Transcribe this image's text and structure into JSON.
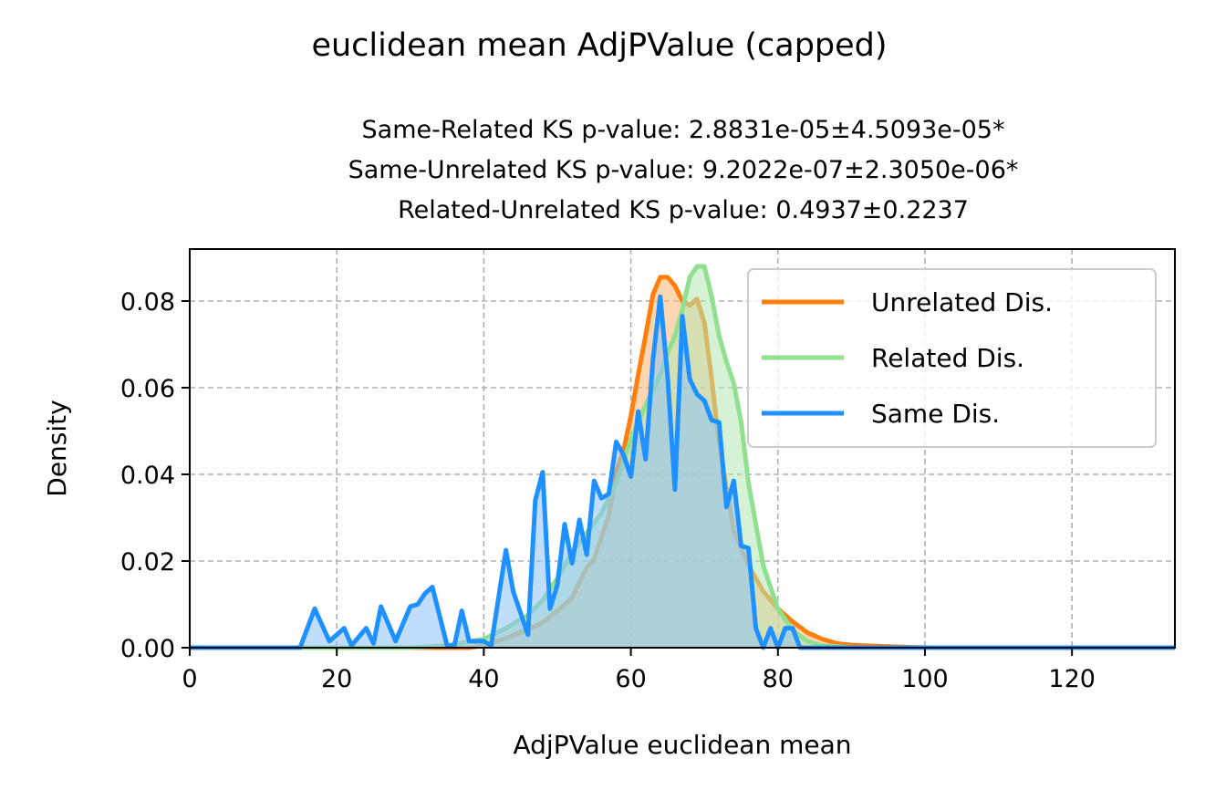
{
  "chart_data": {
    "type": "area",
    "title": "euclidean mean AdjPValue (capped)",
    "subtitle_lines": [
      "Same-Related KS p-value: 2.8831e-05±4.5093e-05*",
      "Same-Unrelated KS p-value: 9.2022e-07±2.3050e-06*",
      "Related-Unrelated KS p-value: 0.4937±0.2237"
    ],
    "xlabel": "AdjPValue euclidean mean",
    "ylabel": "Density",
    "xlim": [
      0,
      134
    ],
    "ylim": [
      0,
      0.092
    ],
    "xticks": [
      0,
      20,
      40,
      60,
      80,
      100,
      120
    ],
    "yticks": [
      0.0,
      0.02,
      0.04,
      0.06,
      0.08
    ],
    "ytick_labels": [
      "0.00",
      "0.02",
      "0.04",
      "0.06",
      "0.08"
    ],
    "grid": true,
    "legend_position": "top-right",
    "series": [
      {
        "name": "Unrelated Dis.",
        "color": "#ff7f0e",
        "fill": "#ffb472",
        "x": [
          0,
          15,
          38,
          40,
          43,
          46,
          48,
          50,
          52,
          54,
          55,
          56,
          57,
          58,
          59,
          60,
          61,
          62,
          63,
          64,
          65,
          66,
          67,
          68,
          69,
          70,
          71,
          72,
          74,
          76,
          78,
          80,
          82,
          84,
          86,
          88,
          90,
          93,
          96,
          100,
          134
        ],
        "values": [
          0,
          0,
          0,
          0.0005,
          0.0022,
          0.0042,
          0.0058,
          0.0085,
          0.0115,
          0.0185,
          0.0205,
          0.0255,
          0.0305,
          0.0405,
          0.0455,
          0.0535,
          0.063,
          0.072,
          0.0815,
          0.0855,
          0.0855,
          0.0835,
          0.08,
          0.079,
          0.0805,
          0.075,
          0.062,
          0.047,
          0.027,
          0.019,
          0.013,
          0.009,
          0.006,
          0.0035,
          0.002,
          0.001,
          0.0006,
          0.0004,
          0.0002,
          0,
          0
        ]
      },
      {
        "name": "Related Dis.",
        "color": "#90e090",
        "fill": "#b4e8b4",
        "x": [
          0,
          15,
          30,
          35,
          40,
          43,
          46,
          48,
          50,
          52,
          54,
          56,
          58,
          60,
          62,
          64,
          65,
          66,
          67,
          68,
          69,
          70,
          71,
          72,
          73,
          74,
          75,
          76,
          78,
          80,
          82,
          84,
          86,
          90,
          134
        ],
        "values": [
          0,
          0,
          0,
          0.0005,
          0.002,
          0.0045,
          0.0075,
          0.011,
          0.016,
          0.022,
          0.0265,
          0.031,
          0.038,
          0.048,
          0.056,
          0.063,
          0.068,
          0.072,
          0.078,
          0.0855,
          0.088,
          0.088,
          0.081,
          0.072,
          0.066,
          0.061,
          0.052,
          0.038,
          0.019,
          0.009,
          0.004,
          0.0015,
          0.0005,
          0,
          0
        ]
      },
      {
        "name": "Same Dis.",
        "color": "#1e90ff",
        "fill": "#8cc3f8",
        "x": [
          0,
          15,
          17,
          19,
          21,
          22,
          24,
          25,
          26,
          28,
          30,
          31,
          32,
          33,
          35,
          36,
          37,
          38,
          40,
          41,
          43,
          44,
          45,
          46,
          47,
          48,
          49,
          50,
          51,
          52,
          53,
          54,
          55,
          56,
          57,
          58,
          59,
          60,
          61,
          62,
          63,
          64,
          65,
          66,
          67,
          68,
          69,
          70,
          71,
          72,
          73,
          74,
          75,
          76,
          77,
          78,
          79,
          80,
          81,
          82,
          83,
          134
        ],
        "values": [
          0,
          0,
          0.009,
          0.0015,
          0.0045,
          0.0005,
          0.0045,
          0.001,
          0.0095,
          0.0015,
          0.0095,
          0.01,
          0.0125,
          0.014,
          0.0005,
          0.0005,
          0.0085,
          0.0015,
          0.0015,
          0.0005,
          0.0225,
          0.013,
          0.008,
          0.003,
          0.034,
          0.0405,
          0.009,
          0.0145,
          0.0285,
          0.0195,
          0.0295,
          0.0215,
          0.0385,
          0.0345,
          0.0355,
          0.0475,
          0.0445,
          0.0395,
          0.0545,
          0.0435,
          0.0665,
          0.081,
          0.0625,
          0.0365,
          0.0765,
          0.062,
          0.0585,
          0.057,
          0.0525,
          0.052,
          0.0325,
          0.0385,
          0.0235,
          0.023,
          0.0045,
          0.0,
          0.0045,
          0.0,
          0.0045,
          0.0045,
          0,
          0
        ]
      }
    ]
  }
}
